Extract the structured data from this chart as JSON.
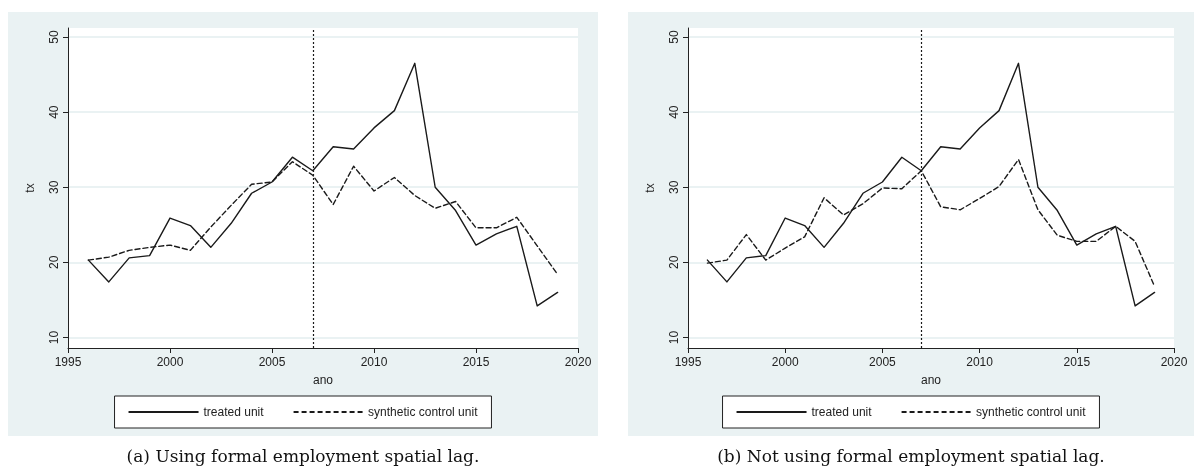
{
  "chart_data": [
    {
      "type": "line",
      "xlabel": "ano",
      "ylabel": "tx",
      "x": [
        1996,
        1997,
        1998,
        1999,
        2000,
        2001,
        2002,
        2003,
        2004,
        2005,
        2006,
        2007,
        2008,
        2009,
        2010,
        2011,
        2012,
        2013,
        2014,
        2015,
        2016,
        2017,
        2018,
        2019
      ],
      "series": [
        {
          "name": "treated unit",
          "color": "#1a1a1a",
          "line_style": "solid",
          "values": [
            20.3,
            17.4,
            20.6,
            20.9,
            25.9,
            24.9,
            22.0,
            25.2,
            29.2,
            30.7,
            34.0,
            32.2,
            35.4,
            35.1,
            37.9,
            40.2,
            46.5,
            30.0,
            26.9,
            22.3,
            23.8,
            24.8,
            14.2,
            16.0
          ]
        },
        {
          "name": "synthetic control unit",
          "color": "#1a1a1a",
          "line_style": "dashed",
          "values": [
            20.3,
            20.7,
            21.6,
            22.0,
            22.3,
            21.6,
            24.7,
            27.6,
            30.4,
            30.7,
            33.4,
            31.6,
            27.7,
            32.8,
            29.5,
            31.3,
            28.9,
            27.2,
            28.1,
            24.6,
            24.6,
            26.0,
            22.2,
            18.4
          ]
        }
      ],
      "xlim": [
        1995,
        2020
      ],
      "xticks": [
        1995,
        2000,
        2005,
        2010,
        2015,
        2020
      ],
      "ylim": [
        8.6,
        51.2
      ],
      "yticks": [
        10,
        20,
        30,
        40,
        50
      ],
      "grid": "y",
      "legend": "bottom",
      "marker": "none",
      "ref_lines": [
        {
          "axis": "x",
          "value": 2007,
          "line_style": "dotted",
          "color": "#1a1a1a"
        }
      ],
      "annotations": [
        "(a) Using formal employment spatial lag."
      ]
    },
    {
      "type": "line",
      "xlabel": "ano",
      "ylabel": "tx",
      "x": [
        1996,
        1997,
        1998,
        1999,
        2000,
        2001,
        2002,
        2003,
        2004,
        2005,
        2006,
        2007,
        2008,
        2009,
        2010,
        2011,
        2012,
        2013,
        2014,
        2015,
        2016,
        2017,
        2018,
        2019
      ],
      "series": [
        {
          "name": "treated unit",
          "color": "#1a1a1a",
          "line_style": "solid",
          "values": [
            20.3,
            17.4,
            20.6,
            20.9,
            25.9,
            24.9,
            22.0,
            25.2,
            29.2,
            30.7,
            34.0,
            32.2,
            35.4,
            35.1,
            37.9,
            40.2,
            46.5,
            30.0,
            26.9,
            22.3,
            23.8,
            24.8,
            14.2,
            16.0
          ]
        },
        {
          "name": "synthetic control unit",
          "color": "#1a1a1a",
          "line_style": "dashed",
          "values": [
            19.9,
            20.3,
            23.7,
            20.3,
            21.9,
            23.4,
            28.6,
            26.3,
            27.8,
            29.9,
            29.8,
            32.2,
            27.4,
            27.0,
            28.5,
            30.1,
            33.7,
            27.0,
            23.6,
            22.8,
            22.8,
            24.8,
            22.8,
            16.8
          ]
        }
      ],
      "xlim": [
        1995,
        2020
      ],
      "xticks": [
        1995,
        2000,
        2005,
        2010,
        2015,
        2020
      ],
      "ylim": [
        8.6,
        51.2
      ],
      "yticks": [
        10,
        20,
        30,
        40,
        50
      ],
      "grid": "y",
      "legend": "bottom",
      "marker": "none",
      "ref_lines": [
        {
          "axis": "x",
          "value": 2007,
          "line_style": "dotted",
          "color": "#1a1a1a"
        }
      ],
      "annotations": [
        "(b) Not using formal employment spatial lag."
      ]
    }
  ]
}
